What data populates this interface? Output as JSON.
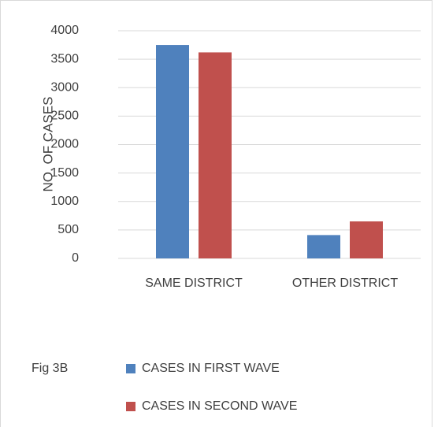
{
  "chart_data": {
    "type": "bar",
    "y_axis_label": "NO. OF CASES",
    "annotation": "Fig  3B",
    "categories": [
      "SAME DISTRICT",
      "OTHER DISTRICT"
    ],
    "series": [
      {
        "name": "CASES IN FIRST WAVE",
        "color": "#4f81bd",
        "values": [
          3750,
          410
        ]
      },
      {
        "name": "CASES IN SECOND WAVE",
        "color": "#c0504d",
        "values": [
          3620,
          650
        ]
      }
    ],
    "ylim": [
      0,
      4000
    ],
    "yticks": [
      0,
      500,
      1000,
      1500,
      2000,
      2500,
      3000,
      3500,
      4000
    ],
    "grid": true
  }
}
